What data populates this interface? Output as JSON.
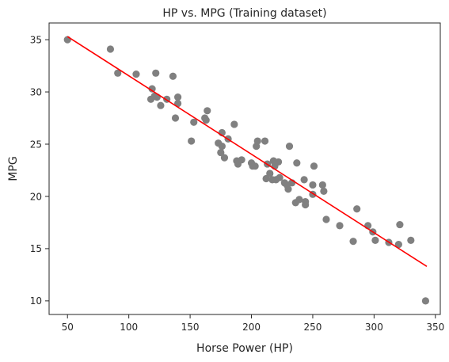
{
  "chart_data": {
    "type": "scatter",
    "title": "HP vs. MPG (Training dataset)",
    "xlabel": "Horse Power (HP)",
    "ylabel": "MPG",
    "xlim": [
      35,
      354
    ],
    "ylim": [
      8.7,
      36.6
    ],
    "x_ticks": [
      50,
      100,
      150,
      200,
      250,
      300,
      350
    ],
    "y_ticks": [
      10,
      15,
      20,
      25,
      30,
      35
    ],
    "grid": false,
    "legend": "none",
    "colors": {
      "points": "#808080",
      "fit_line": "#ff0000",
      "axes": "#262626"
    },
    "series": [
      {
        "type": "scatter",
        "points": [
          [
            50,
            35.0
          ],
          [
            85,
            34.1
          ],
          [
            91,
            31.8
          ],
          [
            106,
            31.7
          ],
          [
            119,
            30.3
          ],
          [
            122,
            31.8
          ],
          [
            118,
            29.3
          ],
          [
            121,
            29.6
          ],
          [
            123,
            29.5
          ],
          [
            126,
            28.7
          ],
          [
            131,
            29.3
          ],
          [
            136,
            31.5
          ],
          [
            138,
            27.5
          ],
          [
            140,
            29.5
          ],
          [
            140,
            28.9
          ],
          [
            151,
            25.3
          ],
          [
            153,
            27.1
          ],
          [
            162,
            27.5
          ],
          [
            163,
            27.3
          ],
          [
            164,
            28.2
          ],
          [
            173,
            25.1
          ],
          [
            175,
            24.2
          ],
          [
            176,
            26.1
          ],
          [
            176,
            24.8
          ],
          [
            178,
            23.7
          ],
          [
            181,
            25.5
          ],
          [
            186,
            26.9
          ],
          [
            188,
            23.4
          ],
          [
            189,
            23.1
          ],
          [
            192,
            23.5
          ],
          [
            200,
            23.2
          ],
          [
            201,
            22.9
          ],
          [
            203,
            22.9
          ],
          [
            204,
            24.8
          ],
          [
            205,
            25.3
          ],
          [
            211,
            25.3
          ],
          [
            212,
            21.7
          ],
          [
            213,
            23.1
          ],
          [
            215,
            22.2
          ],
          [
            217,
            21.6
          ],
          [
            218,
            23.4
          ],
          [
            219,
            22.9
          ],
          [
            220,
            21.6
          ],
          [
            222,
            23.3
          ],
          [
            223,
            21.8
          ],
          [
            227,
            21.3
          ],
          [
            229,
            21.1
          ],
          [
            230,
            20.7
          ],
          [
            231,
            24.8
          ],
          [
            233,
            21.3
          ],
          [
            236,
            19.4
          ],
          [
            237,
            23.2
          ],
          [
            239,
            19.7
          ],
          [
            243,
            21.6
          ],
          [
            244,
            19.5
          ],
          [
            244,
            19.2
          ],
          [
            250,
            20.2
          ],
          [
            250,
            21.1
          ],
          [
            251,
            22.9
          ],
          [
            258,
            21.1
          ],
          [
            259,
            20.5
          ],
          [
            261,
            17.8
          ],
          [
            272,
            17.2
          ],
          [
            283,
            15.7
          ],
          [
            286,
            18.8
          ],
          [
            295,
            17.2
          ],
          [
            299,
            16.6
          ],
          [
            301,
            15.8
          ],
          [
            312,
            15.6
          ],
          [
            320,
            15.4
          ],
          [
            321,
            17.3
          ],
          [
            330,
            15.8
          ],
          [
            342,
            10.0
          ]
        ]
      },
      {
        "type": "line",
        "points": [
          [
            50,
            35.3
          ],
          [
            343,
            13.3
          ]
        ]
      }
    ]
  }
}
